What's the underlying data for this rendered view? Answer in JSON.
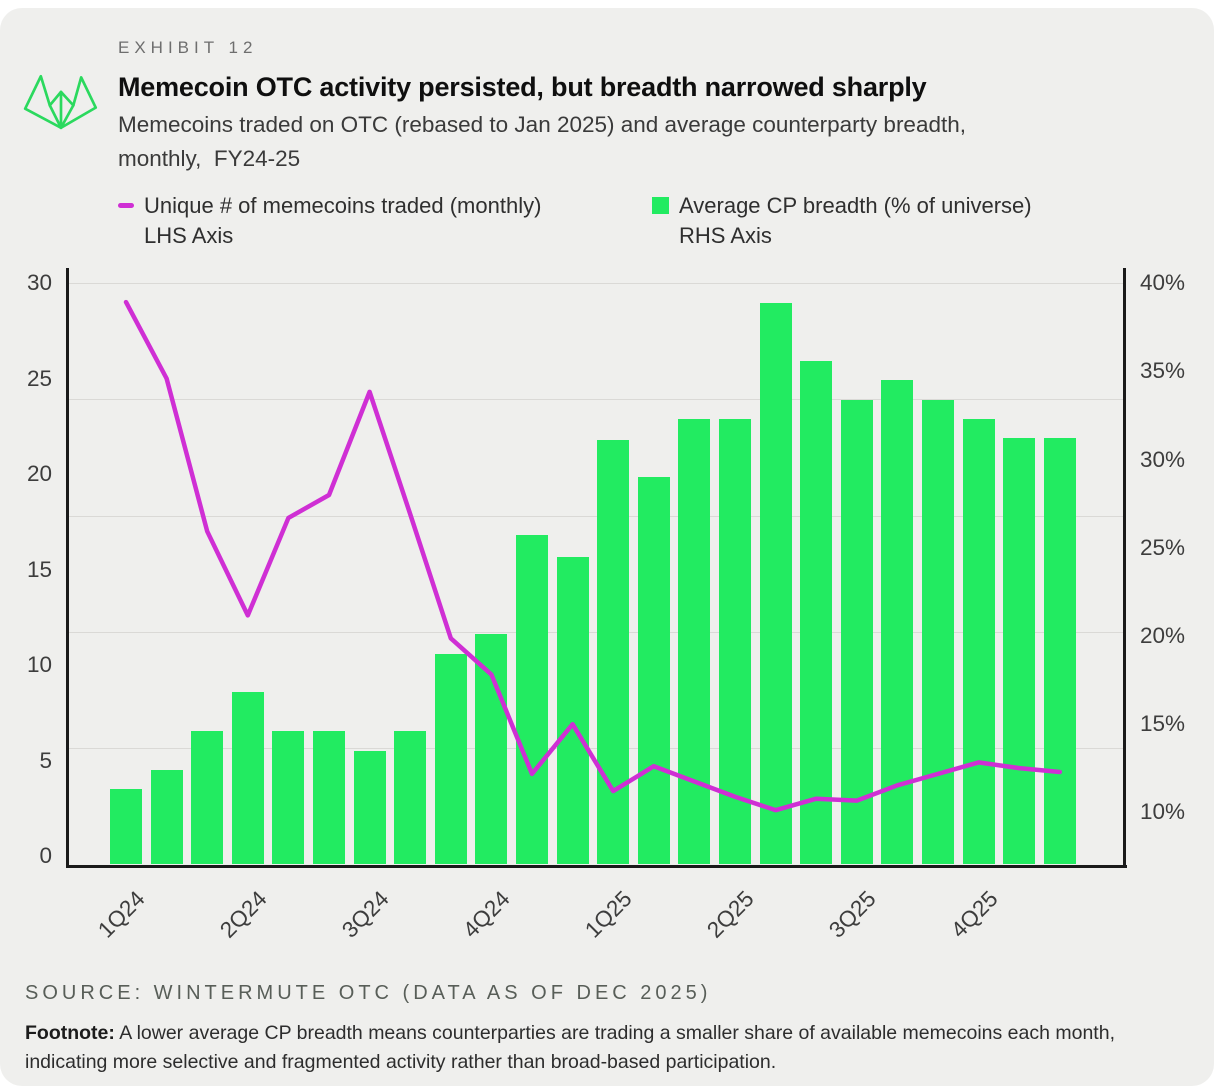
{
  "header": {
    "eyebrow": "EXHIBIT 12",
    "title": "Memecoin OTC activity persisted, but breadth narrowed sharply",
    "subtitle": "Memecoins traded on OTC (rebased to Jan 2025) and average counterparty breadth,\nmonthly,  FY24-25",
    "logo": "wintermute-logo"
  },
  "legend": [
    {
      "swatch": "line-dash",
      "color": "#cf2fd4",
      "label": "Unique # of memecoins traded (monthly)\nLHS Axis"
    },
    {
      "swatch": "square",
      "color": "#22eb61",
      "label": "Average CP breadth (% of universe)\nRHS Axis"
    }
  ],
  "chart_data": {
    "type": "bar+line",
    "title": "Memecoin OTC activity persisted, but breadth narrowed sharply",
    "x_tick_labels": [
      "1Q24",
      "2Q24",
      "3Q24",
      "4Q24",
      "1Q25",
      "2Q25",
      "3Q25",
      "4Q25"
    ],
    "months_per_tick": 3,
    "n_points": 24,
    "series": [
      {
        "name": "Unique # of memecoins traded (monthly)",
        "type": "line",
        "axis": "LHS",
        "color": "#cf2fd4",
        "values": [
          29,
          25,
          17,
          12.6,
          17.7,
          18.9,
          24.3,
          17.9,
          11.4,
          9.5,
          4.3,
          6.9,
          3.4,
          4.7,
          3.9,
          3.1,
          2.4,
          3,
          2.9,
          3.7,
          4.3,
          4.9,
          4.6,
          4.4
        ]
      },
      {
        "name": "Average CP breadth (% of universe)",
        "type": "bar",
        "axis": "RHS",
        "color": "#22eb61",
        "values": [
          11.3,
          12.4,
          14.6,
          16.8,
          14.6,
          14.6,
          13.5,
          14.6,
          19,
          20.1,
          25.7,
          24.5,
          31.1,
          29,
          32.3,
          32.3,
          38.9,
          35.6,
          33.4,
          34.5,
          33.4,
          32.3,
          31.2,
          31.2
        ]
      }
    ],
    "left_axis": {
      "ticks": [
        0,
        5,
        10,
        15,
        20,
        25,
        30
      ],
      "top_value": 30
    },
    "right_axis": {
      "tick_labels": [
        "10%",
        "15%",
        "20%",
        "25%",
        "30%",
        "35%",
        "40%"
      ],
      "tick_values": [
        10,
        15,
        20,
        25,
        30,
        35,
        40
      ]
    },
    "grid": "horizontal",
    "legend_position": "top"
  },
  "footer": {
    "source": "SOURCE: WINTERMUTE OTC (DATA AS OF DEC 2025)",
    "footnote_label": "Footnote:",
    "footnote_text": " A lower average CP breadth means counterparties are trading a smaller share of available memecoins each month, indicating more selective and fragmented activity rather than broad-based participation."
  }
}
